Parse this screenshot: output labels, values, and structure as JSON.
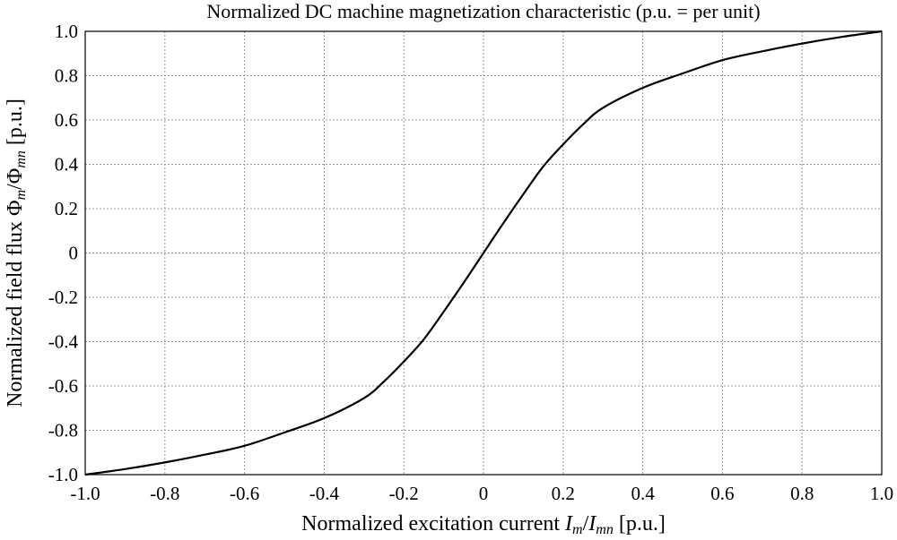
{
  "chart_data": {
    "type": "line",
    "title": "Normalized DC machine magnetization characteristic (p.u. = per unit)",
    "xlabel": {
      "prefix": "Normalized excitation current ",
      "num": "I",
      "num_sub": "m",
      "den": "I",
      "den_sub": "mn",
      "suffix": " [p.u.]"
    },
    "ylabel": {
      "prefix": "Normalized field flux ",
      "num": "Φ",
      "num_sub": "m",
      "den": "Φ",
      "den_sub": "mn",
      "suffix": " [p.u.]"
    },
    "xlim": [
      -1.0,
      1.0
    ],
    "ylim": [
      -1.0,
      1.0
    ],
    "xticks": [
      -1.0,
      -0.8,
      -0.6,
      -0.4,
      -0.2,
      0,
      0.2,
      0.4,
      0.6,
      0.8,
      1.0
    ],
    "xtick_labels": [
      "-1.0",
      "-0.8",
      "-0.6",
      "-0.4",
      "-0.2",
      "0",
      "0.2",
      "0.4",
      "0.6",
      "0.8",
      "1.0"
    ],
    "yticks": [
      -1.0,
      -0.8,
      -0.6,
      -0.4,
      -0.2,
      0,
      0.2,
      0.4,
      0.6,
      0.8,
      1.0
    ],
    "ytick_labels": [
      "-1.0",
      "-0.8",
      "-0.6",
      "-0.4",
      "-0.2",
      "0",
      "0.2",
      "0.4",
      "0.6",
      "0.8",
      "1.0"
    ],
    "grid": true,
    "series": [
      {
        "name": "magnetization characteristic",
        "color": "#000000",
        "x": [
          -1.0,
          -0.9,
          -0.8,
          -0.7,
          -0.6,
          -0.5,
          -0.4,
          -0.3,
          -0.25,
          -0.2,
          -0.15,
          -0.1,
          -0.05,
          0.0,
          0.05,
          0.1,
          0.15,
          0.2,
          0.25,
          0.3,
          0.4,
          0.5,
          0.6,
          0.7,
          0.8,
          0.9,
          1.0
        ],
        "y": [
          -1.0,
          -0.975,
          -0.945,
          -0.91,
          -0.87,
          -0.81,
          -0.745,
          -0.655,
          -0.58,
          -0.49,
          -0.39,
          -0.265,
          -0.135,
          0.0,
          0.135,
          0.265,
          0.39,
          0.49,
          0.58,
          0.655,
          0.745,
          0.81,
          0.87,
          0.91,
          0.945,
          0.975,
          1.0
        ]
      }
    ]
  }
}
